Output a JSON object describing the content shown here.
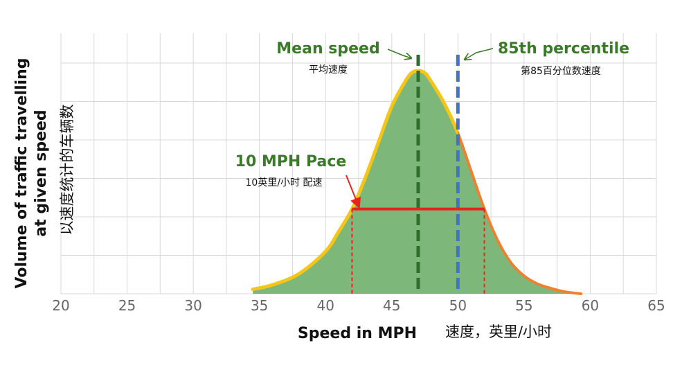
{
  "chart_data": {
    "type": "area",
    "title": "",
    "xlabel": "Speed in MPH",
    "xlabel_cn": "速度，英里/小时",
    "ylabel_line1": "Volume of traffic travelling",
    "ylabel_line2": "at given speed",
    "ylabel_cn": "以速度统计的车辆数",
    "xlim": [
      20,
      65
    ],
    "x_ticks": [
      "20",
      "25",
      "30",
      "35",
      "40",
      "45",
      "50",
      "55",
      "60",
      "65"
    ],
    "grid": true,
    "distribution": {
      "x": [
        34.5,
        36,
        38,
        40,
        41,
        42,
        43,
        44,
        45,
        46,
        46.5,
        47,
        47.5,
        48,
        49,
        50,
        51,
        52,
        53,
        54,
        55,
        56,
        57,
        58,
        59.3
      ],
      "y": [
        0.02,
        0.04,
        0.09,
        0.19,
        0.28,
        0.38,
        0.52,
        0.68,
        0.84,
        0.95,
        0.99,
        1.0,
        0.99,
        0.95,
        0.85,
        0.72,
        0.55,
        0.38,
        0.24,
        0.14,
        0.08,
        0.045,
        0.025,
        0.01,
        0.0
      ]
    },
    "mean_speed": 47,
    "percentile_85": 50,
    "pace_range": [
      42,
      52
    ],
    "pace_level": 0.38,
    "colors": {
      "fill": "#7db87a",
      "curve_left": "#f5c518",
      "curve_right": "#ee8032",
      "mean_line": "#2f6e2a",
      "p85_line": "#4472c4",
      "pace": "#e8231d",
      "annotation_text": "#3a7a2a"
    }
  },
  "annotations": {
    "mean_label": "Mean speed",
    "mean_label_cn": "平均速度",
    "p85_label": "85th percentile",
    "p85_label_cn": "第85百分位数速度",
    "pace_label": "10 MPH Pace",
    "pace_label_cn": "10英里/小时 配速"
  }
}
